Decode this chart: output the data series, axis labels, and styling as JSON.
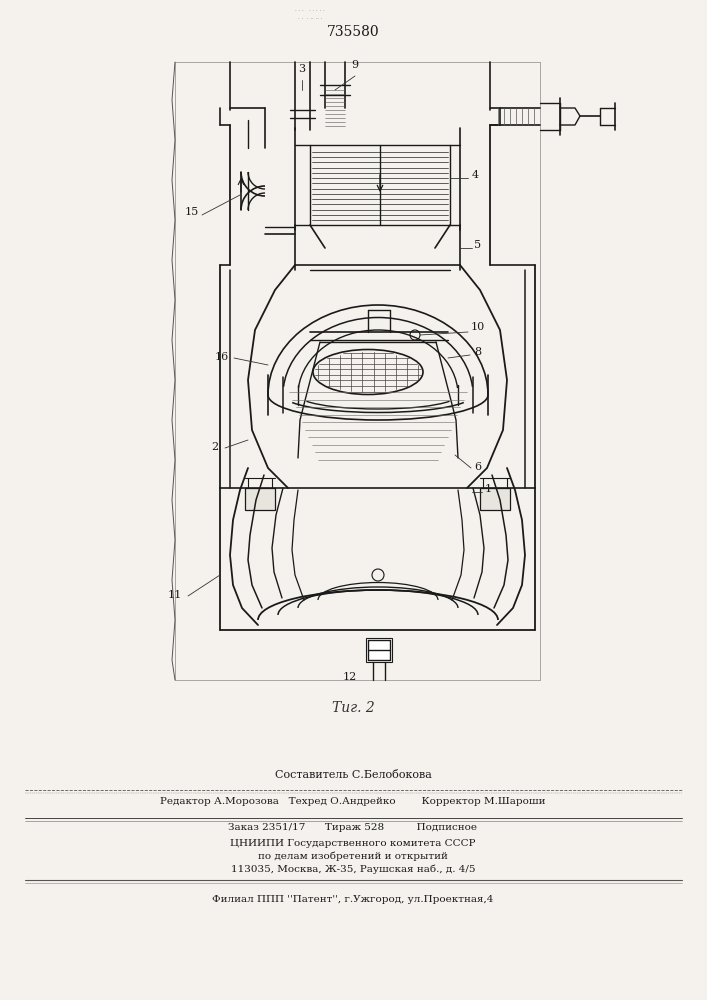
{
  "patent_number": "735580",
  "fig_label": "Τиг. 2",
  "bg_color": "#eeebe5",
  "line_color": "#1a1a1a",
  "page_bg": "#f5f2ed",
  "footer": {
    "line1": "Составитель С.Белобокова",
    "line2": "Редактор А.Морозова   Техред О.Андрейко        Корректор М.Шароши",
    "line3": "Заказ 2351/17      Тираж 528          Подписное",
    "line4": "ЦНИИПИ Государственного комитета СССР",
    "line5": "по делам изобретений и открытий",
    "line6": "113035, Москва, Ж-35, Раушская наб., д. 4/5",
    "line7": "Филиал ППП ''Патент'', г.Ужгород, ул.Проектная,4"
  }
}
